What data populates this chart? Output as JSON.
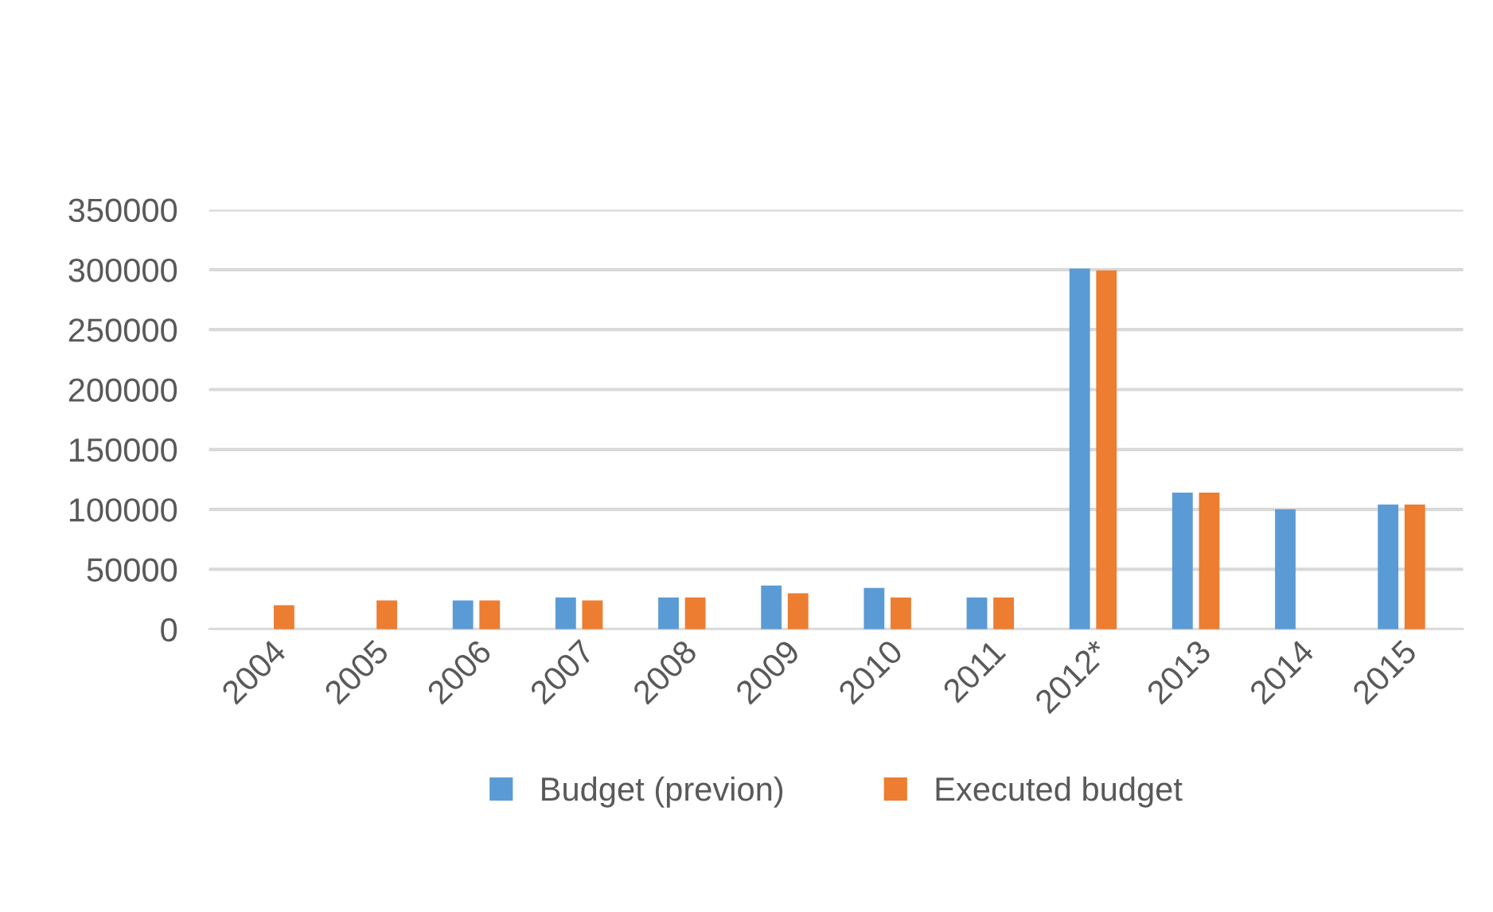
{
  "chart_data": {
    "type": "bar",
    "categories": [
      "2004",
      "2005",
      "2006",
      "2007",
      "2008",
      "2009",
      "2010",
      "2011",
      "2012*",
      "2013",
      "2014",
      "2015"
    ],
    "series": [
      {
        "name": "Budget (previon)",
        "color": "#5b9bd5",
        "values": [
          null,
          null,
          24000,
          26500,
          26500,
          36500,
          34500,
          26500,
          301000,
          114000,
          100000,
          104000
        ]
      },
      {
        "name": "Executed budget",
        "color": "#ed7d31",
        "values": [
          20000,
          24000,
          24000,
          24000,
          26500,
          30000,
          26500,
          26500,
          299500,
          114000,
          null,
          104000
        ]
      }
    ],
    "ylim": [
      0,
      350000
    ],
    "yticks": [
      0,
      50000,
      100000,
      150000,
      200000,
      250000,
      300000,
      350000
    ],
    "grid": "y",
    "legend": "bottom"
  }
}
